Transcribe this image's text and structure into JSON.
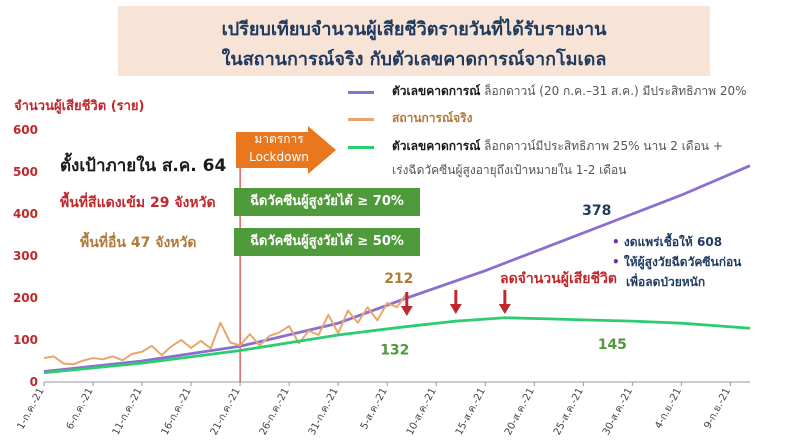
{
  "title": {
    "line1": "เปรียบเทียบจำนวนผู้เสียชีวิตรายวันที่ได้รับรายงาน",
    "line2": "ในสถานการณ์จริง กับตัวเลขคาดการณ์จากโมเดล"
  },
  "annotations": {
    "target": "ตั้งเป้าภายใน ส.ค. 64",
    "zone_red": "พื้นที่สีแดงเข้ม 29 จังหวัด",
    "zone_other": "พื้นที่อื่น 47 จังหวัด",
    "lockdown": [
      "มาตรการ",
      "Lockdown"
    ],
    "vax_red": "ฉีดวัคซีนผู้สูงวัยได้ ≥ 70%",
    "vax_other": "ฉีดวัคซีนผู้สูงวัยได้ ≥ 50%",
    "reduce_deaths": "ลดจำนวนผู้เสียชีวิต",
    "side_notes": [
      "งดแพร่เชื้อให้ 608",
      "ให้ผู้สูงวัยฉีดวัคซีนก่อน",
      "เพื่อลดป่วยหนัก"
    ]
  },
  "legend": [
    {
      "main": "ตัวเลขคาดการณ์",
      "sub": " ล็อกดาวน์ (20 ก.ค.–31 ส.ค.) มีประสิทธิภาพ 20%",
      "color": "#8a6fd1"
    },
    {
      "main": "สถานการณ์จริง",
      "sub": "",
      "color": "#e9a66b"
    },
    {
      "main": "ตัวเลขคาดการณ์",
      "sub": " ล็อกดาวน์มีประสิทธิภาพ 25% นาน 2 เดือน +",
      "sub2": "เร่งฉีดวัคซีนผู้สูงอายุถึงเป้าหมายใน 1-2 เดือน",
      "color": "#2ecc71"
    }
  ],
  "chart_data": {
    "type": "line",
    "ylabel": "จำนวนผู้เสียชีวิต (ราย)",
    "ylim": [
      0,
      600
    ],
    "yticks": [
      0,
      100,
      200,
      300,
      400,
      500,
      600
    ],
    "xticks": [
      "1-ก.ค.-21",
      "6-ก.ค.-21",
      "11-ก.ค.-21",
      "16-ก.ค.-21",
      "21-ก.ค.-21",
      "26-ก.ค.-21",
      "31-ก.ค.-21",
      "5-ส.ค.-21",
      "10-ส.ค.-21",
      "15-ส.ค.-21",
      "20-ส.ค.-21",
      "25-ส.ค.-21",
      "30-ส.ค.-21",
      "4-ก.ย.-21",
      "9-ก.ย.-21"
    ],
    "xlim": [
      0,
      72
    ],
    "grid": false,
    "series": [
      {
        "name": "ตัวเลขคาดการณ์ ล็อกดาวน์ (20 ก.ค.–31 ส.ค.) มีประสิทธิภาพ 20%",
        "color": "#8a6fd1",
        "x": [
          0,
          10,
          20,
          30,
          37,
          45,
          55,
          60,
          65,
          72
        ],
        "y": [
          25,
          50,
          85,
          140,
          200,
          265,
          355,
          400,
          445,
          515
        ]
      },
      {
        "name": "สถานการณ์จริง",
        "color": "#e9a66b",
        "x": [
          0,
          1,
          2,
          3,
          4,
          5,
          6,
          7,
          8,
          9,
          10,
          11,
          12,
          13,
          14,
          15,
          16,
          17,
          18,
          19,
          20,
          21,
          22,
          23,
          24,
          25,
          26,
          27,
          28,
          29,
          30,
          31,
          32,
          33,
          34,
          35,
          36,
          37
        ],
        "y": [
          57,
          61,
          44,
          42,
          51,
          57,
          54,
          61,
          52,
          67,
          72,
          86,
          64,
          85,
          100,
          81,
          98,
          80,
          141,
          94,
          87,
          114,
          87,
          110,
          118,
          133,
          92,
          122,
          112,
          160,
          116,
          170,
          141,
          178,
          147,
          188,
          178,
          212
        ]
      },
      {
        "name": "ตัวเลขคาดการณ์ ล็อกดาวน์มีประสิทธิภาพ 25% นาน 2 เดือน + เร่งฉีดวัคซีนผู้สูงอายุถึงเป้าหมายใน 1-2 เดือน",
        "color": "#2ecc71",
        "x": [
          0,
          10,
          20,
          30,
          37,
          42,
          47,
          52,
          55,
          60,
          65,
          72
        ],
        "y": [
          22,
          45,
          75,
          112,
          132,
          145,
          153,
          150,
          148,
          145,
          140,
          128
        ]
      }
    ],
    "data_labels": [
      {
        "text": "212",
        "x": 37,
        "y": 212
      },
      {
        "text": "132",
        "x": 37,
        "y": 132
      },
      {
        "text": "378",
        "x": 58,
        "y": 378
      },
      {
        "text": "145",
        "x": 60,
        "y": 145
      }
    ],
    "markers": [
      {
        "type": "vline",
        "x": 20,
        "color": "#d23a3a"
      },
      {
        "type": "down-arrow",
        "x": 37,
        "color": "#c0282d"
      },
      {
        "type": "down-arrow",
        "x": 42,
        "color": "#c0282d"
      },
      {
        "type": "down-arrow",
        "x": 47,
        "color": "#c0282d"
      }
    ]
  }
}
